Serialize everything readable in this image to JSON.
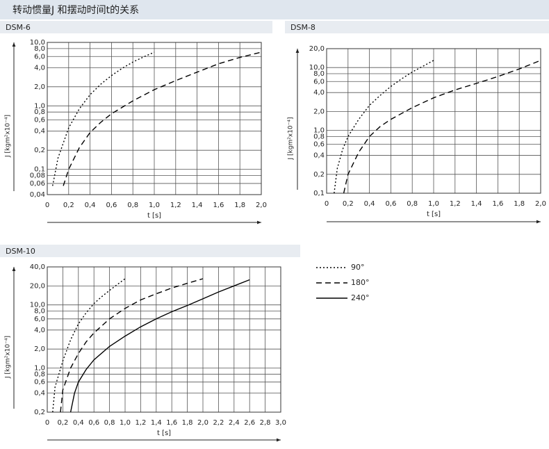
{
  "header": {
    "title": "转动惯量J 和摆动时间t的关系"
  },
  "chart_data": [
    {
      "type": "line",
      "title": "DSM-6",
      "x_label": "t [s]",
      "y_label": "J [kgm²x10⁻⁴]",
      "yscale": "log",
      "grid": true,
      "xlim": [
        0,
        2.0
      ],
      "ylim": [
        0.04,
        10
      ],
      "xticks": [
        0,
        {
          "value": 0.2,
          "label": "0,2"
        },
        {
          "value": 0.4,
          "label": "0,4"
        },
        {
          "value": 0.6,
          "label": "0,6"
        },
        {
          "value": 0.8,
          "label": "0,8"
        },
        {
          "value": 1.0,
          "label": "1,0"
        },
        {
          "value": 1.2,
          "label": "1,2"
        },
        {
          "value": 1.4,
          "label": "1,4"
        },
        {
          "value": 1.6,
          "label": "1,6"
        },
        {
          "value": 1.8,
          "label": "1,8"
        },
        {
          "value": 2.0,
          "label": "2,0"
        }
      ],
      "yticks": [
        {
          "value": 10,
          "label": "10,0"
        },
        {
          "value": 8,
          "label": "8,0"
        },
        {
          "value": 6,
          "label": "6,0"
        },
        {
          "value": 4,
          "label": "4,0"
        },
        {
          "value": 2,
          "label": "2,0"
        },
        {
          "value": 1,
          "label": "1,0"
        },
        {
          "value": 0.8,
          "label": "0,8"
        },
        {
          "value": 0.6,
          "label": "0,6"
        },
        {
          "value": 0.4,
          "label": "0,4"
        },
        {
          "value": 0.2,
          "label": "0,2"
        },
        {
          "value": 0.1,
          "label": "0,1"
        },
        {
          "value": 0.08,
          "label": "0,08"
        },
        {
          "value": 0.06,
          "label": "0,06"
        },
        {
          "value": 0.04,
          "label": "0,04"
        }
      ],
      "series": [
        {
          "dash": "dotted",
          "color": "#000000",
          "x": [
            0.05,
            0.1,
            0.2,
            0.3,
            0.4,
            0.5,
            0.6,
            0.7,
            0.8,
            0.9,
            1.0
          ],
          "values": [
            0.055,
            0.15,
            0.45,
            0.9,
            1.5,
            2.2,
            3.0,
            3.9,
            4.9,
            5.9,
            7.0
          ]
        },
        {
          "dash": "dashed",
          "color": "#000000",
          "x": [
            0.15,
            0.2,
            0.3,
            0.4,
            0.5,
            0.6,
            0.8,
            1.0,
            1.2,
            1.4,
            1.6,
            1.8,
            2.0
          ],
          "values": [
            0.055,
            0.1,
            0.22,
            0.38,
            0.55,
            0.75,
            1.2,
            1.8,
            2.5,
            3.4,
            4.6,
            5.8,
            7.0
          ]
        }
      ]
    },
    {
      "type": "line",
      "title": "DSM-8",
      "x_label": "t [s]",
      "y_label": "J [kgm²x10⁻⁴]",
      "yscale": "log",
      "grid": true,
      "xlim": [
        0,
        2.0
      ],
      "ylim": [
        0.1,
        20
      ],
      "xticks": [
        0,
        {
          "value": 0.2,
          "label": "0,2"
        },
        {
          "value": 0.4,
          "label": "0,4"
        },
        {
          "value": 0.6,
          "label": "0,6"
        },
        {
          "value": 0.8,
          "label": "0,8"
        },
        {
          "value": 1.0,
          "label": "1,0"
        },
        {
          "value": 1.2,
          "label": "1,2"
        },
        {
          "value": 1.4,
          "label": "1,4"
        },
        {
          "value": 1.6,
          "label": "1,6"
        },
        {
          "value": 1.8,
          "label": "1,8"
        },
        {
          "value": 2.0,
          "label": "2,0"
        }
      ],
      "yticks": [
        {
          "value": 20,
          "label": "20,0"
        },
        {
          "value": 10,
          "label": "10,0"
        },
        {
          "value": 8,
          "label": "8,0"
        },
        {
          "value": 6,
          "label": "6,0"
        },
        {
          "value": 4,
          "label": "4,0"
        },
        {
          "value": 2,
          "label": "2,0"
        },
        {
          "value": 1,
          "label": "1,0"
        },
        {
          "value": 0.8,
          "label": "0,8"
        },
        {
          "value": 0.6,
          "label": "0,6"
        },
        {
          "value": 0.4,
          "label": "0,4"
        },
        {
          "value": 0.2,
          "label": "0,2"
        },
        {
          "value": 0.1,
          "label": "0,1"
        }
      ],
      "series": [
        {
          "dash": "dotted",
          "color": "#000000",
          "x": [
            0.07,
            0.1,
            0.15,
            0.2,
            0.3,
            0.4,
            0.5,
            0.6,
            0.7,
            0.8,
            0.9,
            1.0
          ],
          "values": [
            0.1,
            0.25,
            0.5,
            0.8,
            1.5,
            2.5,
            3.6,
            5,
            6.6,
            8.5,
            10.5,
            13
          ]
        },
        {
          "dash": "dashed",
          "color": "#000000",
          "x": [
            0.16,
            0.2,
            0.3,
            0.4,
            0.5,
            0.6,
            0.8,
            1.0,
            1.2,
            1.4,
            1.6,
            1.8,
            2.0
          ],
          "values": [
            0.1,
            0.2,
            0.45,
            0.8,
            1.15,
            1.5,
            2.3,
            3.3,
            4.4,
            5.6,
            7.2,
            9.5,
            13
          ]
        }
      ]
    },
    {
      "type": "line",
      "title": "DSM-10",
      "x_label": "t [s]",
      "y_label": "J [kgm²x10⁻⁴]",
      "yscale": "log",
      "grid": true,
      "legend": "right",
      "xlim": [
        0,
        3.0
      ],
      "ylim": [
        0.2,
        40
      ],
      "xticks": [
        0,
        {
          "value": 0.2,
          "label": "0,2"
        },
        {
          "value": 0.4,
          "label": "0,4"
        },
        {
          "value": 0.6,
          "label": "0,6"
        },
        {
          "value": 0.8,
          "label": "0,8"
        },
        {
          "value": 1.0,
          "label": "1,0"
        },
        {
          "value": 1.2,
          "label": "1,2"
        },
        {
          "value": 1.4,
          "label": "1,4"
        },
        {
          "value": 1.6,
          "label": "1,6"
        },
        {
          "value": 1.8,
          "label": "1,8"
        },
        {
          "value": 2.0,
          "label": "2,0"
        },
        {
          "value": 2.2,
          "label": "2,2"
        },
        {
          "value": 2.4,
          "label": "2,4"
        },
        {
          "value": 2.6,
          "label": "2,6"
        },
        {
          "value": 2.8,
          "label": "2,8"
        },
        {
          "value": 3.0,
          "label": "3,0"
        }
      ],
      "yticks": [
        {
          "value": 40,
          "label": "40,0"
        },
        {
          "value": 20,
          "label": "20,0"
        },
        {
          "value": 10,
          "label": "10,0"
        },
        {
          "value": 8,
          "label": "8,0"
        },
        {
          "value": 6,
          "label": "6,0"
        },
        {
          "value": 4,
          "label": "4,0"
        },
        {
          "value": 2,
          "label": "2,0"
        },
        {
          "value": 1,
          "label": "1,0"
        },
        {
          "value": 0.8,
          "label": "0,8"
        },
        {
          "value": 0.6,
          "label": "0,6"
        },
        {
          "value": 0.4,
          "label": "0,4"
        },
        {
          "value": 0.2,
          "label": "0,2"
        }
      ],
      "series": [
        {
          "name": "90°",
          "dash": "dotted",
          "color": "#000000",
          "x": [
            0.07,
            0.1,
            0.2,
            0.3,
            0.4,
            0.5,
            0.6,
            0.7,
            0.8,
            0.9,
            1.0
          ],
          "values": [
            0.2,
            0.5,
            1.3,
            2.8,
            5,
            7.5,
            10.5,
            13.5,
            17,
            21,
            26
          ]
        },
        {
          "name": "180°",
          "dash": "dashed",
          "color": "#000000",
          "x": [
            0.17,
            0.2,
            0.3,
            0.4,
            0.5,
            0.6,
            0.8,
            1.0,
            1.2,
            1.4,
            1.6,
            1.8,
            2.0
          ],
          "values": [
            0.2,
            0.45,
            1.0,
            1.7,
            2.6,
            3.6,
            6,
            8.8,
            12,
            15,
            18.5,
            22,
            26
          ]
        },
        {
          "name": "240°",
          "dash": "solid",
          "color": "#000000",
          "x": [
            0.3,
            0.35,
            0.4,
            0.5,
            0.6,
            0.8,
            1.0,
            1.2,
            1.4,
            1.6,
            1.8,
            2.0,
            2.2,
            2.4,
            2.6
          ],
          "values": [
            0.2,
            0.4,
            0.6,
            0.95,
            1.35,
            2.2,
            3.2,
            4.5,
            6.0,
            7.8,
            9.8,
            12.5,
            16,
            20,
            25
          ]
        }
      ]
    }
  ]
}
